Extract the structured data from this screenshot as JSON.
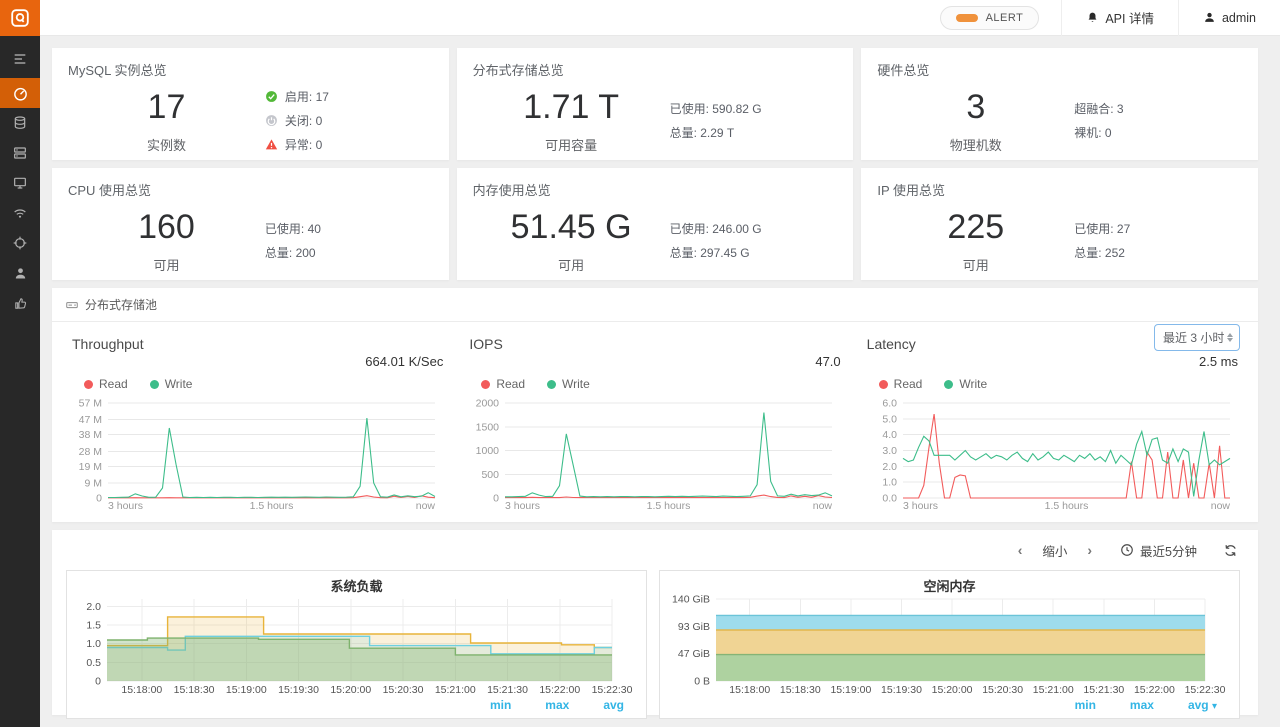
{
  "topbar": {
    "alert_label": "ALERT",
    "api_label": "API 详情",
    "user_label": "admin"
  },
  "sidebar": {
    "active_item": "dashboard"
  },
  "stat_cards": [
    {
      "title": "MySQL 实例总览",
      "value": "17",
      "value_label": "实例数",
      "details": [
        {
          "icon": "check-circle",
          "text": "启用: 17"
        },
        {
          "icon": "power-circle",
          "text": "关闭: 0"
        },
        {
          "icon": "warning-triangle",
          "text": "异常: 0"
        }
      ]
    },
    {
      "title": "分布式存储总览",
      "value": "1.71 T",
      "value_label": "可用容量",
      "details": [
        {
          "text": "已使用: 590.82 G"
        },
        {
          "text": "总量: 2.29 T"
        }
      ]
    },
    {
      "title": "硬件总览",
      "value": "3",
      "value_label": "物理机数",
      "details": [
        {
          "text": "超融合: 3"
        },
        {
          "text": "裸机: 0"
        }
      ]
    },
    {
      "title": "CPU 使用总览",
      "value": "160",
      "value_label": "可用",
      "details": [
        {
          "text": "已使用: 40"
        },
        {
          "text": "总量: 200"
        }
      ]
    },
    {
      "title": "内存使用总览",
      "value": "51.45 G",
      "value_label": "可用",
      "details": [
        {
          "text": "已使用: 246.00 G"
        },
        {
          "text": "总量: 297.45 G"
        }
      ]
    },
    {
      "title": "IP 使用总览",
      "value": "225",
      "value_label": "可用",
      "details": [
        {
          "text": "已使用: 27"
        },
        {
          "text": "总量: 252"
        }
      ]
    }
  ],
  "storage_section": {
    "title": "分布式存储池",
    "time_select_value": "最近 3 小时"
  },
  "bottom_toolbar": {
    "zoom_out_label": "缩小",
    "time_range_label": "最近5分钟"
  },
  "colors": {
    "brand_orange": "#e8650e",
    "active_orange": "#d35f07",
    "alert_orange": "#f0923c",
    "read_red": "#f25b5b",
    "write_green": "#3dbd8a",
    "link_blue": "#33b5e5"
  },
  "chart_data": [
    {
      "id": "throughput",
      "type": "line",
      "title": "Throughput",
      "current_value": "664.01 K/Sec",
      "ylim": [
        0,
        57
      ],
      "yticks": [
        {
          "v": 0,
          "label": "0"
        },
        {
          "v": 9,
          "label": "9 M"
        },
        {
          "v": 19,
          "label": "19 M"
        },
        {
          "v": 28,
          "label": "28 M"
        },
        {
          "v": 38,
          "label": "38 M"
        },
        {
          "v": 47,
          "label": "47 M"
        },
        {
          "v": 57,
          "label": "57 M"
        }
      ],
      "xlabels": [
        "3 hours",
        "1.5 hours",
        "now"
      ],
      "series": [
        {
          "name": "Read",
          "color": "#f25b5b",
          "values": [
            0.1,
            0.1,
            0.1,
            0.1,
            0.2,
            0.1,
            0.1,
            0.1,
            0.1,
            0.2,
            0.1,
            0.1,
            0.1,
            0.1,
            0.1,
            0.1,
            0.1,
            0.1,
            0.1,
            0.1,
            0.1,
            0.1,
            0.1,
            0.1,
            0.1,
            0.1,
            0.1,
            0.1,
            0.1,
            0.1,
            0.1,
            0.1,
            0.1,
            0.1,
            0.1,
            0.1,
            0.2,
            0.8,
            1.4,
            0.6,
            0.2,
            0.1,
            1.1,
            0.3,
            0.9,
            0.3,
            1.3,
            0.5,
            0.2
          ]
        },
        {
          "name": "Write",
          "color": "#3dbd8a",
          "values": [
            0.3,
            0.3,
            0.4,
            0.5,
            2.5,
            1.2,
            0.4,
            0.5,
            6,
            42,
            20,
            0.6,
            0.3,
            0.4,
            0.3,
            0.4,
            0.3,
            0.4,
            0.4,
            0.3,
            0.4,
            0.4,
            0.3,
            0.4,
            0.5,
            0.4,
            0.5,
            0.4,
            0.5,
            0.6,
            0.5,
            0.4,
            0.6,
            0.5,
            0.4,
            0.5,
            0.7,
            7,
            48,
            9,
            0.7,
            0.5,
            1.8,
            0.7,
            1.3,
            0.8,
            1.1,
            3.2,
            0.9
          ]
        }
      ]
    },
    {
      "id": "iops",
      "type": "line",
      "title": "IOPS",
      "current_value": "47.0",
      "ylim": [
        0,
        2000
      ],
      "yticks": [
        {
          "v": 0,
          "label": "0"
        },
        {
          "v": 500,
          "label": "500"
        },
        {
          "v": 1000,
          "label": "1000"
        },
        {
          "v": 1500,
          "label": "1500"
        },
        {
          "v": 2000,
          "label": "2000"
        }
      ],
      "xlabels": [
        "3 hours",
        "1.5 hours",
        "now"
      ],
      "series": [
        {
          "name": "Read",
          "color": "#f25b5b",
          "values": [
            8,
            8,
            8,
            8,
            15,
            8,
            8,
            8,
            8,
            20,
            10,
            8,
            8,
            8,
            8,
            8,
            8,
            8,
            8,
            8,
            8,
            8,
            8,
            8,
            8,
            8,
            8,
            8,
            8,
            8,
            8,
            8,
            8,
            8,
            8,
            8,
            15,
            40,
            60,
            30,
            12,
            8,
            45,
            15,
            35,
            15,
            50,
            20,
            10
          ]
        },
        {
          "name": "Write",
          "color": "#3dbd8a",
          "values": [
            25,
            25,
            30,
            35,
            110,
            60,
            30,
            35,
            260,
            1350,
            700,
            40,
            25,
            30,
            25,
            30,
            25,
            30,
            30,
            25,
            30,
            30,
            25,
            30,
            35,
            30,
            35,
            30,
            35,
            40,
            35,
            30,
            40,
            35,
            30,
            35,
            45,
            280,
            1800,
            350,
            45,
            35,
            80,
            45,
            70,
            50,
            60,
            110,
            45
          ]
        }
      ]
    },
    {
      "id": "latency",
      "type": "line",
      "title": "Latency",
      "current_value": "2.5 ms",
      "ylim": [
        0,
        6
      ],
      "yticks": [
        {
          "v": 0,
          "label": "0.0"
        },
        {
          "v": 1,
          "label": "1.0"
        },
        {
          "v": 2,
          "label": "2.0"
        },
        {
          "v": 3,
          "label": "3.0"
        },
        {
          "v": 4,
          "label": "4.0"
        },
        {
          "v": 5,
          "label": "5.0"
        },
        {
          "v": 6,
          "label": "6.0"
        }
      ],
      "xlabels": [
        "3 hours",
        "1.5 hours",
        "now"
      ],
      "series": [
        {
          "name": "Read",
          "color": "#f25b5b",
          "values": [
            0,
            0,
            0,
            0,
            0.8,
            3.2,
            5.3,
            2.2,
            0,
            0,
            1.3,
            1.45,
            1.4,
            0,
            0,
            0,
            0,
            0,
            0,
            0,
            0,
            0,
            0,
            0,
            0,
            0,
            0,
            0,
            0,
            0,
            0,
            0,
            0,
            0,
            0,
            0,
            0,
            0,
            0,
            0,
            0,
            0,
            0,
            0,
            2.3,
            0,
            0,
            2.9,
            2.4,
            0,
            0,
            2.9,
            0,
            0,
            2.4,
            0,
            2.2,
            0,
            0,
            2.2,
            0,
            3.3,
            0,
            0
          ]
        },
        {
          "name": "Write",
          "color": "#3dbd8a",
          "values": [
            2.5,
            2.3,
            2.4,
            3.2,
            3.9,
            3.6,
            2.7,
            2.7,
            2.7,
            2.7,
            2.4,
            2.7,
            3.0,
            2.6,
            2.4,
            2.6,
            2.8,
            2.5,
            2.7,
            2.6,
            2.4,
            2.7,
            2.9,
            2.5,
            2.3,
            2.8,
            2.4,
            2.6,
            2.9,
            2.5,
            2.4,
            2.7,
            2.5,
            2.3,
            2.7,
            2.5,
            2.8,
            2.4,
            2.6,
            2.3,
            3.0,
            2.2,
            2.7,
            2.4,
            2.1,
            3.4,
            4.2,
            2.7,
            3.7,
            3.8,
            2.4,
            2.2,
            3.1,
            2.3,
            3.1,
            2.9,
            0.1,
            2.4,
            4.2,
            2.1,
            2.4,
            2.1,
            2.3,
            2.5
          ]
        }
      ]
    },
    {
      "id": "system-load",
      "type": "step-area",
      "title": "系统负载",
      "ylim": [
        0,
        2.2
      ],
      "yticks": [
        {
          "v": 0,
          "label": "0"
        },
        {
          "v": 0.5,
          "label": "0.5"
        },
        {
          "v": 1.0,
          "label": "1.0"
        },
        {
          "v": 1.5,
          "label": "1.5"
        },
        {
          "v": 2.0,
          "label": "2.0"
        }
      ],
      "xticklabels": [
        "15:18:00",
        "15:18:30",
        "15:19:00",
        "15:19:30",
        "15:20:00",
        "15:20:30",
        "15:21:00",
        "15:21:30",
        "15:22:00",
        "15:22:30"
      ],
      "links": [
        "min",
        "max",
        "avg"
      ],
      "series": [
        {
          "name": "yellow",
          "color": "#e8b43a",
          "fill": "rgba(232,180,58,0.18)",
          "points": [
            [
              0,
              0.95
            ],
            [
              0.12,
              0.95
            ],
            [
              0.12,
              1.72
            ],
            [
              0.31,
              1.72
            ],
            [
              0.31,
              1.26
            ],
            [
              0.72,
              1.26
            ],
            [
              0.72,
              1.02
            ],
            [
              0.9,
              1.02
            ],
            [
              0.9,
              0.97
            ],
            [
              0.965,
              0.97
            ],
            [
              0.965,
              0.9
            ],
            [
              1,
              0.9
            ]
          ]
        },
        {
          "name": "blue",
          "color": "#6ed0e0",
          "fill": "rgba(110,208,224,0.16)",
          "points": [
            [
              0,
              0.9
            ],
            [
              0.12,
              0.9
            ],
            [
              0.12,
              0.83
            ],
            [
              0.155,
              0.83
            ],
            [
              0.155,
              1.2
            ],
            [
              0.52,
              1.2
            ],
            [
              0.52,
              0.95
            ],
            [
              0.76,
              0.95
            ],
            [
              0.76,
              0.73
            ],
            [
              0.965,
              0.73
            ],
            [
              0.965,
              0.9
            ],
            [
              1,
              0.9
            ]
          ]
        },
        {
          "name": "green",
          "color": "#7eb26d",
          "fill": "rgba(126,178,109,0.35)",
          "points": [
            [
              0,
              1.1
            ],
            [
              0.08,
              1.1
            ],
            [
              0.08,
              1.15
            ],
            [
              0.3,
              1.15
            ],
            [
              0.3,
              1.12
            ],
            [
              0.48,
              1.12
            ],
            [
              0.48,
              0.88
            ],
            [
              0.69,
              0.88
            ],
            [
              0.69,
              0.7
            ],
            [
              1,
              0.7
            ]
          ]
        }
      ]
    },
    {
      "id": "free-memory",
      "type": "step-area",
      "title": "空闲内存",
      "ylim": [
        0,
        140
      ],
      "yticks": [
        {
          "v": 0,
          "label": "0 B"
        },
        {
          "v": 47,
          "label": "47 GiB"
        },
        {
          "v": 93,
          "label": "93 GiB"
        },
        {
          "v": 140,
          "label": "140 GiB"
        }
      ],
      "xticklabels": [
        "15:18:00",
        "15:18:30",
        "15:19:00",
        "15:19:30",
        "15:20:00",
        "15:20:30",
        "15:21:00",
        "15:21:30",
        "15:22:00",
        "15:22:30"
      ],
      "links": [
        "min",
        "max",
        "avg"
      ],
      "series": [
        {
          "name": "cyan-band",
          "color": "#6bc4d8",
          "fill": "#9edcec",
          "points": [
            [
              0,
              112
            ],
            [
              1,
              112
            ]
          ]
        },
        {
          "name": "yellow-band",
          "color": "#e3b64d",
          "fill": "#f0d494",
          "points": [
            [
              0,
              87
            ],
            [
              1,
              87
            ]
          ]
        },
        {
          "name": "green-band",
          "color": "#85b476",
          "fill": "#aed2a0",
          "points": [
            [
              0,
              45
            ],
            [
              1,
              45
            ]
          ]
        }
      ]
    }
  ]
}
